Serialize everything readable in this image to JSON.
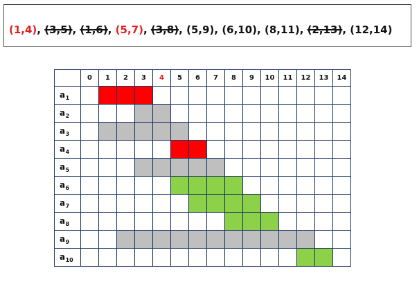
{
  "sequence": [
    {
      "text": "(1,4)",
      "style": "red"
    },
    {
      "text": "(3,5)",
      "style": "struck"
    },
    {
      "text": "(1,6)",
      "style": "struck"
    },
    {
      "text": "(5,7)",
      "style": "red"
    },
    {
      "text": "(3,8)",
      "style": "struck"
    },
    {
      "text": "(5,9)",
      "style": "normal"
    },
    {
      "text": "(6,10)",
      "style": "normal"
    },
    {
      "text": "(8,11)",
      "style": "normal"
    },
    {
      "text": "(2,13)",
      "style": "struck"
    },
    {
      "text": "(12,14)",
      "style": "normal"
    }
  ],
  "separator": ", ",
  "columns": [
    "0",
    "1",
    "2",
    "3",
    "4",
    "5",
    "6",
    "7",
    "8",
    "9",
    "10",
    "11",
    "12",
    "13",
    "14"
  ],
  "highlight_column": "4",
  "colors": {
    "red": "#ff0000",
    "gray": "#bfbfbf",
    "green": "#8cd147",
    "border": "#1f3864",
    "highlight_text": "#e02020"
  },
  "rows": [
    {
      "letter": "a",
      "sub": "1",
      "start": 1,
      "end": 4,
      "color": "red"
    },
    {
      "letter": "a",
      "sub": "2",
      "start": 3,
      "end": 5,
      "color": "gray"
    },
    {
      "letter": "a",
      "sub": "3",
      "start": 1,
      "end": 6,
      "color": "gray"
    },
    {
      "letter": "a",
      "sub": "4",
      "start": 5,
      "end": 7,
      "color": "red"
    },
    {
      "letter": "a",
      "sub": "5",
      "start": 3,
      "end": 8,
      "color": "gray"
    },
    {
      "letter": "a",
      "sub": "6",
      "start": 5,
      "end": 9,
      "color": "green"
    },
    {
      "letter": "a",
      "sub": "7",
      "start": 6,
      "end": 10,
      "color": "green"
    },
    {
      "letter": "a",
      "sub": "8",
      "start": 8,
      "end": 11,
      "color": "green"
    },
    {
      "letter": "a",
      "sub": "9",
      "start": 2,
      "end": 13,
      "color": "gray"
    },
    {
      "letter": "a",
      "sub": "10",
      "start": 12,
      "end": 14,
      "color": "green"
    }
  ]
}
